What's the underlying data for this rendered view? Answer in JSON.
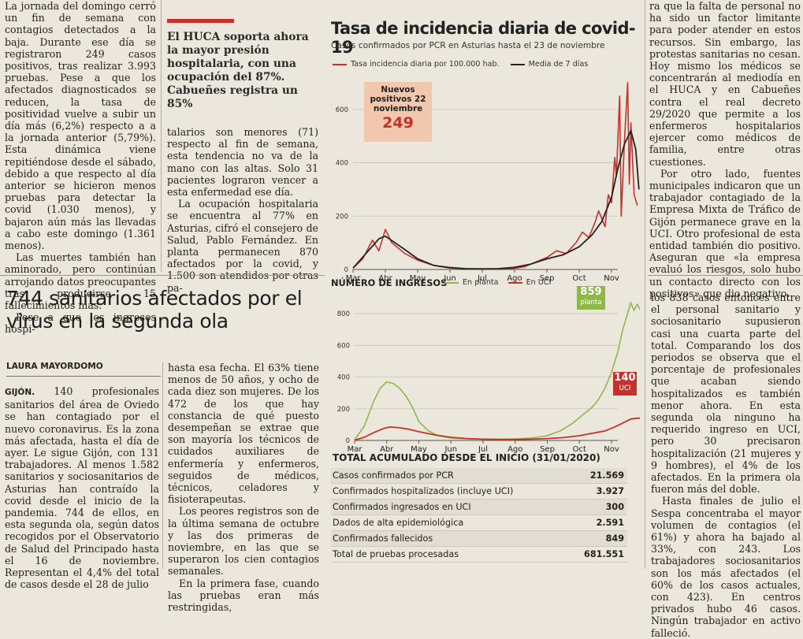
{
  "left_top": [
    "La jornada del domingo cerró un fin de semana con contagios detectados a la baja. Durante ese día se registraron 249 casos positivos, tras realizar 3.993 pruebas. Pese a que los afectados diagnosticados se reducen, la tasa de positividad vuelve a subir un día más (6,2%) respecto a a la jornada anterior (5,79%). Esta dinámica viene repitiéndose desde el sábado, debido a que respecto al día anterior se hicieron menos pruebas para detectar la covid (1.030 menos), y bajaron aún más las llevadas a cabo este domingo (1.361 menos).",
    "Las muertes también han aminorado, pero continúan arrojando datos preocupantes tras producirse 15 fallecimientos más.",
    "Pese a que los ingresos hospi-"
  ],
  "pullquote": "El HUCA soporta ahora la mayor presión hospitalaria, con una ocupación del 87%. Cabueñes registra un 85%",
  "mid_top": [
    "talarios son menores (71) respecto al fin de semana, esta tendencia no va de la mano con las altas. Solo 31 pacientes lograron vencer a esta enfermedad ese día.",
    "La ocupación hospitalaria se encuentra al 77% en Asturias, cifró el consejero de Salud, Pablo Fernández. En planta permanecen 870 afectados por la covid, y 1.500 son atendidos por otras pa-"
  ],
  "headline": "744 sanitarios afectados por el virus en la segunda ola",
  "author": "LAURA MAYORDOMO",
  "left_bottom": {
    "dateline": "GIJÓN.",
    "lead": "140 profesionales sanitarios del área de Oviedo se han contagiado por el nuevo coronavirus. Es la zona más afectada, hasta el día de ayer. Le sigue Gijón, con 131 trabajadores. Al menos 1.582 sanitarios y sociosanitarios de Asturias han contraído la covid desde el inicio de la pandemia. 744 de ellos, en esta segunda ola, según datos recogidos por el Observatorio de Salud del Principado hasta el 16 de noviembre. Representan el 4,4% del total de casos desde el 28 de julio"
  },
  "mid_bottom": [
    "hasta esa fecha. El 63% tiene menos de 50 años, y ocho de cada diez son mujeres. De los 472 de los que hay constancia de qué puesto desempeñan se extrae que son mayoría los técnicos de cuidados auxiliares de enfermería y enfermeros, seguidos de médicos, técnicos, celadores y fisioterapeutas.",
    "Los peores registros son de la última semana de octubre y las dos primeras de noviembre, en las que se superaron los cien contagios semanales.",
    "En la primera fase, cuando las pruebas eran más restringidas,"
  ],
  "right_top": [
    "ra que la falta de personal no ha sido un factor limitante para poder atender en estos recursos. Sin embargo, las protestas sanitarias no cesan. Hoy mismo los médicos se concentrarán al mediodía en el HUCA y en Cabueñes contra el real decreto 29/2020 que permite a los enfermeros hospitalarios ejercer como médicos de familia, entre otras cuestiones.",
    "Por otro lado, fuentes municipales indicaron que un trabajador contagiado de la Empresa Mixta de Tráfico de Gijón permanece grave en la UCI. Otro profesional de esta entidad también dio positivo. Aseguran que «la empresa evaluó los riesgos, solo hubo un contacto directo con los positivos» que dio negativo."
  ],
  "right_bottom": [
    "los 838 casos entonces entre el personal sanitario y sociosanitario supusieron casi una cuarta parte del total. Comparando los dos periodos se observa que el porcentaje de profesionales que acaban siendo hospitalizados es también menor ahora. En esta segunda ola ninguno ha requerido ingreso en UCI, pero 30 precisaron hospitalización (21 mujeres y 9 hombres), el 4% de los afectados. En la primera ola fueron más del doble.",
    "Hasta finales de julio el Sespa concentraba el mayor volumen de contagios (el 61%) y ahora ha bajado al 33%, con 243. Los trabajadores sociosanitarios son los más afectados (el 60% de los casos actuales, con 423). En centros privados hubo 46 casos. Ningún trabajador en activo falleció."
  ],
  "infographic": {
    "title": "Tasa de incidencia diaria de covid-19",
    "subtitle": "Casos confirmados por PCR en Asturias hasta el 23 de noviembre",
    "legend1": "Tasa incidencia diaria por 100.000 hab.",
    "legend2": "Media de 7 días",
    "callout_label": "Nuevos positivos 22 noviembre",
    "callout_value": "249",
    "ingresos_title": "NÚMERO DE INGRESOS",
    "legend_planta": "En planta",
    "legend_uci": "En UCI",
    "planta_value": "859",
    "planta_label": "planta",
    "uci_value": "140",
    "uci_label": "UCI",
    "table_title": "TOTAL ACUMULADO DESDE EL INICIO (31/01/2020)",
    "table": [
      {
        "label": "Casos confirmados por PCR",
        "value": "21.569"
      },
      {
        "label": "Confirmados hospitalizados (incluye UCI)",
        "value": "3.927"
      },
      {
        "label": "Confirmados ingresados en UCI",
        "value": "300"
      },
      {
        "label": "Dados de alta epidemiológica",
        "value": "2.591"
      },
      {
        "label": "Confirmados fallecidos",
        "value": "849"
      },
      {
        "label": "Total de pruebas procesadas",
        "value": "681.551"
      }
    ],
    "colors": {
      "red": "#c6322b",
      "green": "#8fb84a",
      "black": "#222222",
      "callout_bg": "#f1c7ad"
    }
  },
  "chart_data": [
    {
      "type": "line",
      "title": "Tasa de incidencia diaria de covid-19",
      "xlabel": "",
      "ylabel": "",
      "categories": [
        "Mar",
        "Abr",
        "May",
        "Jun",
        "Jul",
        "Ago",
        "Sep",
        "Oct",
        "Nov"
      ],
      "ylim": [
        0,
        700
      ],
      "yticks": [
        0,
        200,
        400,
        600
      ],
      "series": [
        {
          "name": "Tasa incidencia diaria por 100.000 hab.",
          "x": [
            0,
            0.3,
            0.6,
            0.8,
            1.0,
            1.2,
            1.4,
            1.6,
            2.0,
            2.5,
            3,
            3.5,
            4,
            4.5,
            5,
            5.3,
            5.6,
            6,
            6.3,
            6.6,
            6.9,
            7.1,
            7.3,
            7.5,
            7.6,
            7.8,
            7.9,
            8.0,
            8.1,
            8.15,
            8.25,
            8.3,
            8.4,
            8.5,
            8.55,
            8.6,
            8.7,
            8.8
          ],
          "y": [
            5,
            40,
            110,
            70,
            150,
            100,
            80,
            60,
            35,
            15,
            8,
            3,
            2,
            2,
            4,
            10,
            25,
            45,
            70,
            60,
            100,
            140,
            120,
            180,
            220,
            160,
            280,
            250,
            420,
            350,
            650,
            200,
            480,
            700,
            320,
            550,
            280,
            240
          ]
        },
        {
          "name": "Media de 7 días",
          "x": [
            0,
            0.4,
            0.8,
            1.0,
            1.3,
            1.6,
            2.0,
            2.5,
            3,
            3.5,
            4,
            4.5,
            5,
            5.5,
            6,
            6.5,
            7,
            7.4,
            7.7,
            8.0,
            8.2,
            8.4,
            8.6,
            8.75,
            8.85
          ],
          "y": [
            5,
            60,
            115,
            125,
            100,
            75,
            40,
            15,
            6,
            3,
            2,
            3,
            8,
            20,
            40,
            55,
            85,
            130,
            180,
            270,
            380,
            470,
            520,
            450,
            300
          ]
        }
      ]
    },
    {
      "type": "line",
      "title": "NÚMERO DE INGRESOS",
      "xlabel": "",
      "ylabel": "",
      "categories": [
        "Mar",
        "Abr",
        "May",
        "Jun",
        "Jul",
        "Ago",
        "Sep",
        "Oct",
        "Nov"
      ],
      "ylim": [
        0,
        850
      ],
      "yticks": [
        0,
        200,
        400,
        600,
        800
      ],
      "series": [
        {
          "name": "En planta",
          "x": [
            0,
            0.3,
            0.6,
            0.8,
            1.0,
            1.2,
            1.4,
            1.6,
            1.8,
            2.0,
            2.3,
            2.6,
            3,
            3.5,
            4,
            4.5,
            5,
            5.5,
            6,
            6.4,
            6.8,
            7.1,
            7.4,
            7.6,
            7.8,
            8.0,
            8.2,
            8.35,
            8.5,
            8.6,
            8.7,
            8.8,
            8.9
          ],
          "y": [
            5,
            90,
            250,
            330,
            370,
            360,
            330,
            280,
            210,
            120,
            60,
            30,
            15,
            10,
            8,
            8,
            10,
            15,
            30,
            60,
            110,
            160,
            210,
            260,
            330,
            430,
            560,
            700,
            800,
            870,
            820,
            860,
            820
          ]
        },
        {
          "name": "En UCI",
          "x": [
            0,
            0.3,
            0.6,
            0.9,
            1.1,
            1.4,
            1.7,
            2.0,
            2.5,
            3,
            3.5,
            4,
            4.5,
            5,
            5.5,
            6,
            6.5,
            7,
            7.4,
            7.8,
            8.1,
            8.4,
            8.6,
            8.8,
            8.9
          ],
          "y": [
            2,
            20,
            50,
            75,
            85,
            80,
            70,
            55,
            35,
            20,
            12,
            8,
            6,
            6,
            8,
            12,
            18,
            30,
            45,
            60,
            85,
            115,
            135,
            140,
            140
          ]
        }
      ]
    }
  ]
}
